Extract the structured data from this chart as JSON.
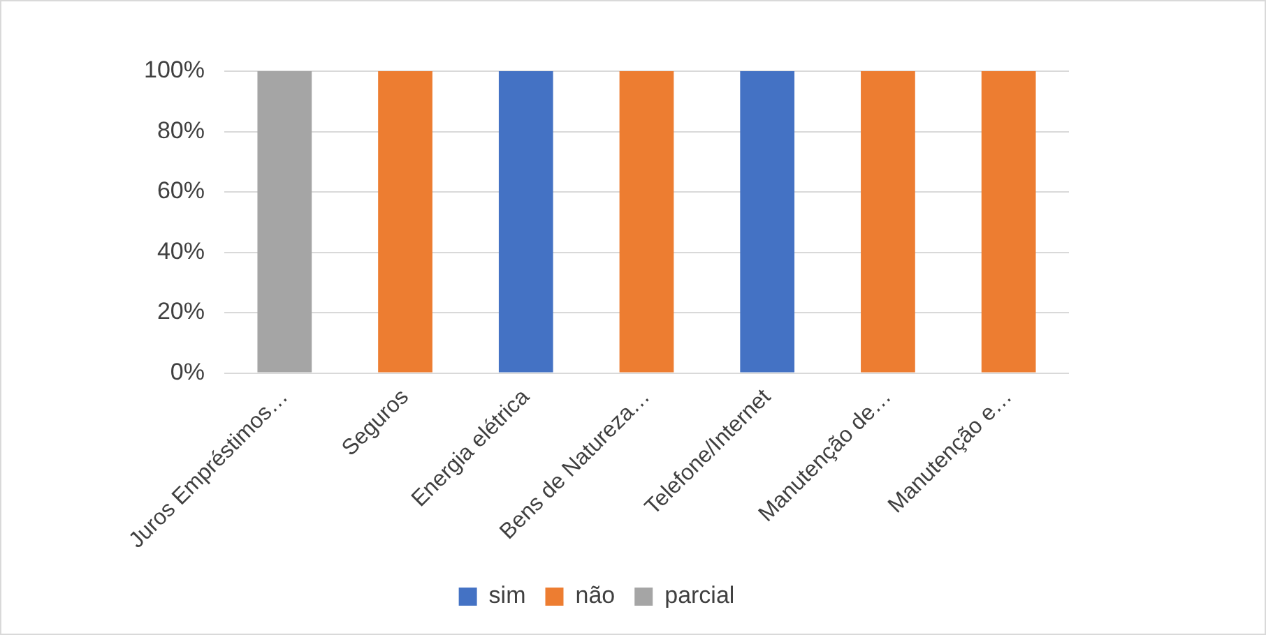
{
  "chart_data": {
    "type": "bar",
    "stacked": true,
    "categories": [
      "Juros Empréstimos…",
      "Seguros",
      "Energia elétrica",
      "Bens de Natureza…",
      "Telefone/Internet",
      "Manutenção de…",
      "Manutenção e…"
    ],
    "series": [
      {
        "name": "sim",
        "color": "#4472c4",
        "values": [
          null,
          null,
          100,
          null,
          100,
          null,
          null
        ]
      },
      {
        "name": "não",
        "color": "#ed7d31",
        "values": [
          null,
          100,
          null,
          100,
          null,
          100,
          100
        ]
      },
      {
        "name": "parcial",
        "color": "#a5a5a5",
        "values": [
          100,
          null,
          null,
          null,
          null,
          null,
          null
        ]
      }
    ],
    "ylim": [
      0,
      100
    ],
    "yticks": [
      {
        "value": 0,
        "label": "0%"
      },
      {
        "value": 20,
        "label": "20%"
      },
      {
        "value": 40,
        "label": "40%"
      },
      {
        "value": 60,
        "label": "60%"
      },
      {
        "value": 80,
        "label": "80%"
      },
      {
        "value": 100,
        "label": "100%"
      }
    ],
    "grid": "y",
    "legend": "bottom"
  }
}
